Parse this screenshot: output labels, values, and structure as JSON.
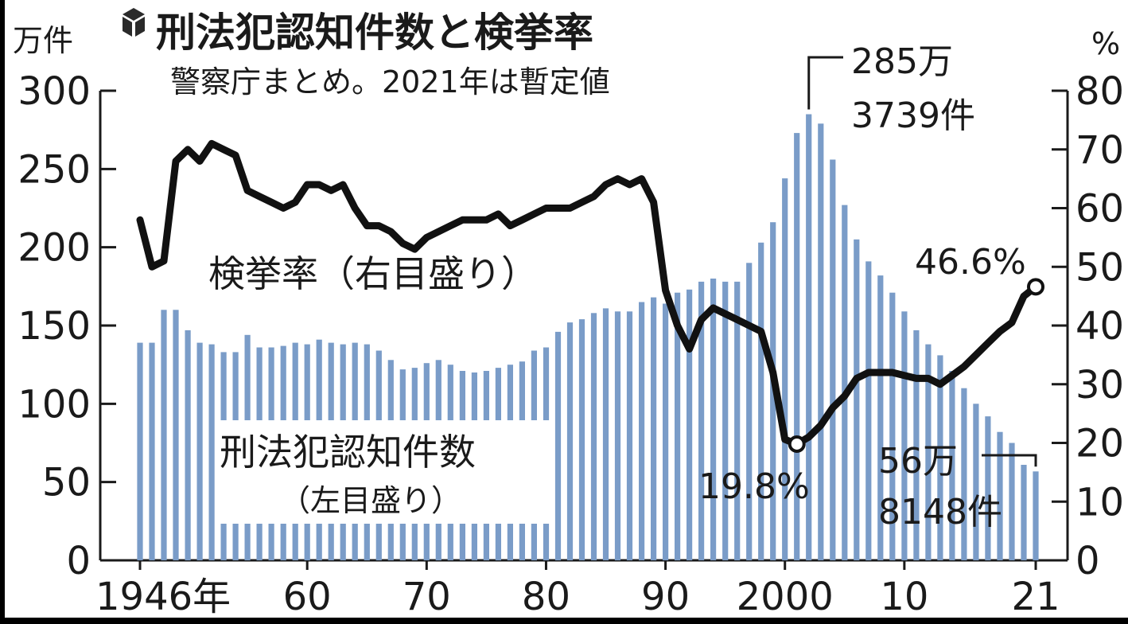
{
  "chart_data": {
    "type": "bar+line",
    "title": "刑法犯認知件数と検挙率",
    "subtitle": "警察庁まとめ。2021年は暫定値",
    "left_unit": "万件",
    "right_unit": "%",
    "left_axis": {
      "range": [
        0,
        300
      ],
      "ticks": [
        "0",
        "50",
        "100",
        "150",
        "200",
        "250",
        "300"
      ]
    },
    "right_axis": {
      "range": [
        0,
        80
      ],
      "ticks": [
        "0",
        "10",
        "20",
        "30",
        "40",
        "50",
        "60",
        "70",
        "80"
      ]
    },
    "x_tick_labels": [
      {
        "year": 1946,
        "label": "1946年"
      },
      {
        "year": 1960,
        "label": "60"
      },
      {
        "year": 1970,
        "label": "70"
      },
      {
        "year": 1980,
        "label": "80"
      },
      {
        "year": 1990,
        "label": "90"
      },
      {
        "year": 2000,
        "label": "2000"
      },
      {
        "year": 2010,
        "label": "10"
      },
      {
        "year": 2021,
        "label": "21"
      }
    ],
    "bar_series": {
      "label_line1": "刑法犯認知件数",
      "label_line2": "（左目盛り）",
      "color": "#7a9cc8",
      "x": [
        1946,
        1947,
        1948,
        1949,
        1950,
        1951,
        1952,
        1953,
        1954,
        1955,
        1956,
        1957,
        1958,
        1959,
        1960,
        1961,
        1962,
        1963,
        1964,
        1965,
        1966,
        1967,
        1968,
        1969,
        1970,
        1971,
        1972,
        1973,
        1974,
        1975,
        1976,
        1977,
        1978,
        1979,
        1980,
        1981,
        1982,
        1983,
        1984,
        1985,
        1986,
        1987,
        1988,
        1989,
        1990,
        1991,
        1992,
        1993,
        1994,
        1995,
        1996,
        1997,
        1998,
        1999,
        2000,
        2001,
        2002,
        2003,
        2004,
        2005,
        2006,
        2007,
        2008,
        2009,
        2010,
        2011,
        2012,
        2013,
        2014,
        2015,
        2016,
        2017,
        2018,
        2019,
        2020,
        2021
      ],
      "values": [
        139,
        139,
        160,
        160,
        147,
        139,
        138,
        133,
        133,
        144,
        136,
        136,
        137,
        139,
        138,
        141,
        139,
        138,
        139,
        138,
        134,
        128,
        122,
        123,
        126,
        128,
        125,
        121,
        120,
        121,
        123,
        125,
        127,
        134,
        136,
        146,
        152,
        154,
        158,
        161,
        159,
        159,
        165,
        168,
        164,
        171,
        173,
        178,
        180,
        178,
        178,
        190,
        203,
        216,
        244,
        273,
        285,
        279,
        256,
        227,
        205,
        191,
        182,
        171,
        159,
        147,
        138,
        131,
        121,
        110,
        100,
        92,
        82,
        75,
        61,
        56.8
      ]
    },
    "line_series": {
      "label": "検挙率（右目盛り）",
      "color": "#111111",
      "x": [
        1946,
        1947,
        1948,
        1949,
        1950,
        1951,
        1952,
        1953,
        1954,
        1955,
        1956,
        1957,
        1958,
        1959,
        1960,
        1961,
        1962,
        1963,
        1964,
        1965,
        1966,
        1967,
        1968,
        1969,
        1970,
        1971,
        1972,
        1973,
        1974,
        1975,
        1976,
        1977,
        1978,
        1979,
        1980,
        1981,
        1982,
        1983,
        1984,
        1985,
        1986,
        1987,
        1988,
        1989,
        1990,
        1991,
        1992,
        1993,
        1994,
        1995,
        1996,
        1997,
        1998,
        1999,
        2000,
        2001,
        2002,
        2003,
        2004,
        2005,
        2006,
        2007,
        2008,
        2009,
        2010,
        2011,
        2012,
        2013,
        2014,
        2015,
        2016,
        2017,
        2018,
        2019,
        2020,
        2021
      ],
      "values": [
        58,
        50,
        51,
        68,
        70,
        68,
        71,
        70,
        69,
        63,
        62,
        61,
        60,
        61,
        64,
        64,
        63,
        64,
        60,
        57,
        57,
        56,
        54,
        53,
        55,
        56,
        57,
        58,
        58,
        58,
        59,
        57,
        58,
        59,
        60,
        60,
        60,
        61,
        62,
        64,
        65,
        64,
        65,
        61,
        46,
        40,
        36,
        41,
        43,
        42,
        41,
        40,
        39,
        32,
        20.6,
        19.8,
        21,
        23,
        26,
        28,
        31,
        32,
        32,
        32,
        31.5,
        31,
        31,
        30,
        31.5,
        33,
        35,
        37,
        39,
        40.5,
        45,
        46.6
      ]
    },
    "annotations": {
      "peak_count_line1": "285万",
      "peak_count_line2": "3739件",
      "min_rate": "19.8%",
      "latest_rate": "46.6%",
      "latest_count_line1": "56万",
      "latest_count_line2": "8148件"
    }
  }
}
